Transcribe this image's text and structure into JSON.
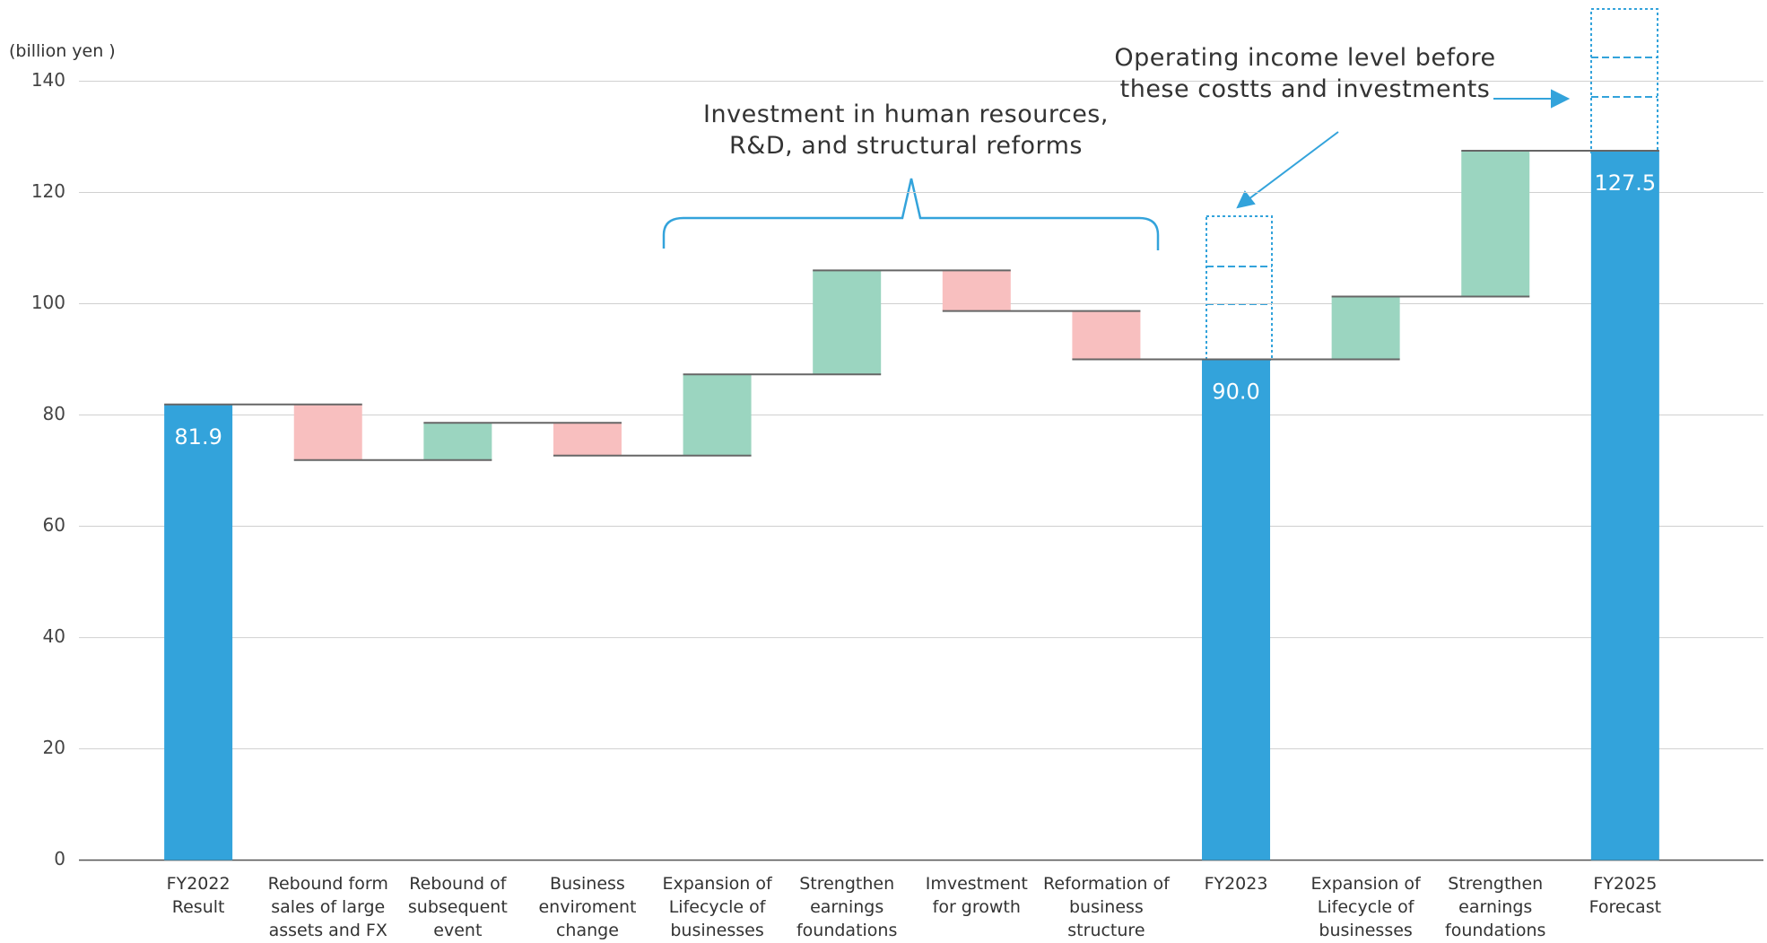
{
  "chart_data": {
    "type": "waterfall",
    "unit_label": "(billion yen )",
    "annotations": [
      "Investment in human resources,\nR&D, and structural reforms",
      "Operating income level before\nthese costts and investments"
    ],
    "categories": [
      "FY2022\nResult",
      "Rebound form\nsales of large\nassets and FX",
      "Rebound of\nsubsequent\nevent",
      "Business\nenviroment\nchange",
      "Expansion of\nLifecycle of\nbusinesses",
      "Strengthen\nearnings\nfoundations",
      "Imvestment\nfor growth",
      "Reformation of\nbusiness\nstructure",
      "FY2023",
      "Expansion of\nLifecycle of\nbusinesses",
      "Strengthen\nearnings\nfoundations",
      "FY2025\nForecast"
    ],
    "values": [
      81.9,
      -10.0,
      6.7,
      -5.9,
      14.6,
      18.7,
      -7.3,
      -8.7,
      90.0,
      11.3,
      26.2,
      127.5
    ],
    "value_labels": [
      "81.9",
      null,
      null,
      null,
      null,
      null,
      null,
      null,
      "90.0",
      null,
      null,
      "127.5"
    ],
    "is_total": [
      true,
      false,
      false,
      false,
      false,
      false,
      false,
      false,
      true,
      false,
      false,
      true
    ],
    "total_color": "#33a3db",
    "increase_color": "#9bd5c0",
    "decrease_color": "#f8bfbf",
    "ylim": [
      0,
      140
    ],
    "yticks": [
      0,
      20,
      40,
      60,
      80,
      100,
      120,
      140
    ],
    "grid": true
  }
}
